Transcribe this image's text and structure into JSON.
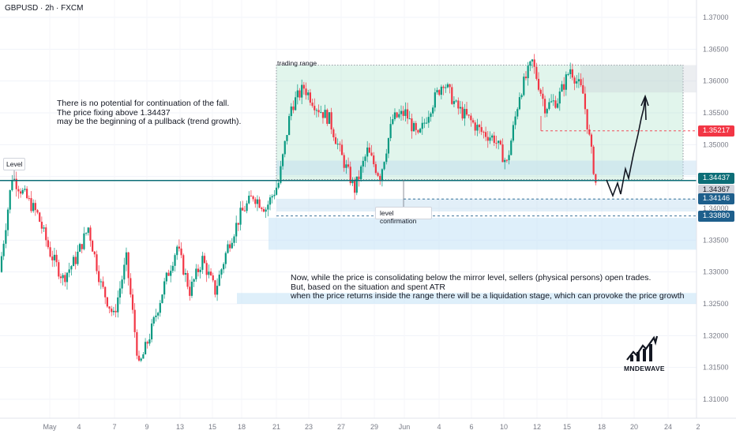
{
  "header": {
    "symbol": "GBPUSD · 2h · FXCM"
  },
  "annotations": {
    "trading_range": "trading range",
    "level": "Level",
    "level_confirmation": "level confirmation",
    "note_top": "There is no potential for continuation of the fall.\nThe price fixing above 1.34437\nmay be the beginning of a pullback (trend growth).",
    "note_bottom": "Now, while the price is consolidating below the mirror level, sellers (physical persons) open trades.\nBut, based on the situation and spent ATR\nwhen the price returns inside the range there will be a liquidation stage, which can provoke the price growth"
  },
  "logo": {
    "text": "MNDEWAVE"
  },
  "price_badges": [
    {
      "value": "1.35217",
      "color": "#f23645"
    },
    {
      "value": "1.34437",
      "color": "#0d6e77"
    },
    {
      "value": "1.34367",
      "color": "#d1d4dc",
      "text_color": "#131722"
    },
    {
      "value": "1.34146",
      "color": "#1e5f8c"
    },
    {
      "value": "1.33880",
      "color": "#1e5f8c"
    }
  ],
  "chart_data": {
    "type": "candlestick",
    "symbol": "GBPUSD",
    "timeframe": "2h",
    "y_axis": {
      "min": 1.305,
      "max": 1.3725,
      "ticks": [
        "1.37000",
        "1.36500",
        "1.36000",
        "1.35500",
        "1.35000",
        "1.34500",
        "1.34000",
        "1.33500",
        "1.33000",
        "1.32500",
        "1.32000",
        "1.31500",
        "1.31000"
      ]
    },
    "x_ticks": [
      "May",
      "4",
      "7",
      "9",
      "13",
      "15",
      "18",
      "21",
      "23",
      "27",
      "29",
      "Jun",
      "4",
      "6",
      "10",
      "12",
      "15",
      "18",
      "20",
      "24",
      "2"
    ],
    "levels": {
      "mirror_level": 1.34437,
      "resistance": 1.35217,
      "support_1": 1.34146,
      "support_2": 1.3388,
      "current_price": 1.34367
    },
    "trading_range": {
      "top": 1.3625,
      "bottom": 1.3445,
      "from_label": "21",
      "to_label": "18"
    },
    "price_path": [
      [
        "Apr 30",
        1.33
      ],
      [
        "May 1",
        1.345
      ],
      [
        "May 2",
        1.342
      ],
      [
        "May 4",
        1.339
      ],
      [
        "May 5",
        1.333
      ],
      [
        "May 6",
        1.329
      ],
      [
        "May 7",
        1.332
      ],
      [
        "May 8",
        1.337
      ],
      [
        "May 9",
        1.328
      ],
      [
        "May 10",
        1.323
      ],
      [
        "May 11",
        1.332
      ],
      [
        "May 12",
        1.315
      ],
      [
        "May 13",
        1.321
      ],
      [
        "May 14",
        1.328
      ],
      [
        "May 15",
        1.334
      ],
      [
        "May 16",
        1.327
      ],
      [
        "May 17",
        1.332
      ],
      [
        "May 18",
        1.327
      ],
      [
        "May 19",
        1.334
      ],
      [
        "May 20",
        1.339
      ],
      [
        "May 21",
        1.342
      ],
      [
        "May 22",
        1.34
      ],
      [
        "May 23",
        1.344
      ],
      [
        "May 24",
        1.356
      ],
      [
        "May 25",
        1.359
      ],
      [
        "May 26",
        1.356
      ],
      [
        "May 27",
        1.354
      ],
      [
        "May 28",
        1.348
      ],
      [
        "May 29",
        1.343
      ],
      [
        "May 30",
        1.349
      ],
      [
        "May 31",
        1.345
      ],
      [
        "Jun 1",
        1.354
      ],
      [
        "Jun 2",
        1.355
      ],
      [
        "Jun 3",
        1.351
      ],
      [
        "Jun 4",
        1.356
      ],
      [
        "Jun 5",
        1.36
      ],
      [
        "Jun 6",
        1.356
      ],
      [
        "Jun 7",
        1.354
      ],
      [
        "Jun 8",
        1.352
      ],
      [
        "Jun 9",
        1.351
      ],
      [
        "Jun 10",
        1.347
      ],
      [
        "Jun 11",
        1.358
      ],
      [
        "Jun 12",
        1.363
      ],
      [
        "Jun 13",
        1.356
      ],
      [
        "Jun 14",
        1.357
      ],
      [
        "Jun 15",
        1.362
      ],
      [
        "Jun 16",
        1.358
      ],
      [
        "Jun 17",
        1.344
      ]
    ]
  }
}
